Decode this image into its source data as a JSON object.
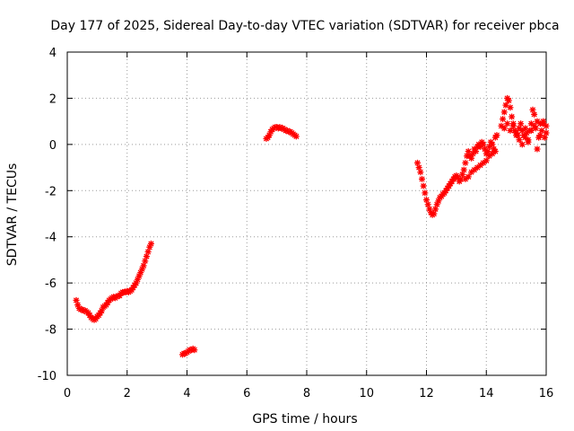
{
  "chart_data": {
    "type": "scatter",
    "title": "Day 177 of 2025, Sidereal Day-to-day VTEC variation (SDTVAR) for receiver pbca",
    "xlabel": "GPS time / hours",
    "ylabel": "SDTVAR / TECUs",
    "xlim": [
      0,
      16
    ],
    "ylim": [
      -10,
      4
    ],
    "xticks": [
      0,
      2,
      4,
      6,
      8,
      10,
      12,
      14,
      16
    ],
    "xtick_labels": [
      "0",
      "2",
      "4",
      "6",
      "8",
      "10",
      "12",
      "14",
      "16"
    ],
    "yticks": [
      -10,
      -8,
      -6,
      -4,
      -2,
      0,
      2,
      4
    ],
    "ytick_labels": [
      "-10",
      "-8",
      "-6",
      "-4",
      "-2",
      "0",
      "2",
      "4"
    ],
    "grid": true,
    "marker": "plus-cross",
    "series": [
      {
        "name": "SDTVAR pbca",
        "color": "#ff0000",
        "segments": [
          {
            "x": [
              0.3,
              0.35,
              0.4,
              0.45,
              0.5,
              0.55,
              0.6,
              0.65,
              0.7,
              0.75,
              0.8,
              0.85,
              0.9,
              0.95,
              1.0,
              1.05,
              1.1,
              1.15,
              1.2,
              1.25,
              1.3,
              1.35,
              1.4,
              1.45,
              1.5,
              1.55,
              1.6,
              1.65,
              1.7,
              1.75,
              1.8,
              1.85,
              1.9,
              1.95,
              2.0,
              2.05,
              2.1,
              2.15,
              2.2,
              2.25,
              2.3,
              2.35,
              2.4,
              2.45,
              2.5,
              2.55,
              2.6,
              2.65,
              2.7,
              2.75,
              2.8
            ],
            "y": [
              -6.75,
              -6.95,
              -7.1,
              -7.15,
              -7.15,
              -7.2,
              -7.2,
              -7.25,
              -7.3,
              -7.4,
              -7.5,
              -7.55,
              -7.6,
              -7.55,
              -7.45,
              -7.4,
              -7.3,
              -7.2,
              -7.05,
              -7.0,
              -6.95,
              -6.85,
              -6.75,
              -6.7,
              -6.65,
              -6.6,
              -6.65,
              -6.6,
              -6.55,
              -6.55,
              -6.45,
              -6.4,
              -6.4,
              -6.4,
              -6.35,
              -6.4,
              -6.35,
              -6.3,
              -6.2,
              -6.1,
              -6.0,
              -5.85,
              -5.7,
              -5.55,
              -5.4,
              -5.25,
              -5.05,
              -4.85,
              -4.65,
              -4.45,
              -4.3
            ]
          },
          {
            "x": [
              3.85,
              3.9,
              3.95,
              4.0,
              4.05,
              4.1,
              4.15,
              4.2,
              4.25
            ],
            "y": [
              -9.1,
              -9.05,
              -9.05,
              -9.0,
              -8.95,
              -8.9,
              -8.9,
              -8.85,
              -8.9
            ]
          },
          {
            "x": [
              6.65,
              6.7,
              6.75,
              6.8,
              6.85,
              6.9,
              6.95,
              7.0,
              7.05,
              7.1,
              7.15,
              7.2,
              7.25,
              7.3,
              7.35,
              7.4,
              7.45,
              7.5,
              7.55,
              7.6,
              7.65
            ],
            "y": [
              0.25,
              0.3,
              0.4,
              0.55,
              0.65,
              0.7,
              0.75,
              0.75,
              0.7,
              0.75,
              0.7,
              0.7,
              0.65,
              0.6,
              0.6,
              0.55,
              0.55,
              0.5,
              0.45,
              0.4,
              0.35
            ]
          },
          {
            "x": [
              11.7,
              11.75,
              11.8,
              11.85,
              11.9,
              11.95,
              12.0,
              12.05,
              12.1,
              12.15,
              12.2,
              12.25,
              12.3,
              12.35,
              12.4,
              12.45,
              12.5,
              12.55,
              12.6,
              12.65,
              12.7,
              12.75,
              12.8,
              12.85,
              12.9,
              12.95,
              13.0,
              13.05,
              13.1,
              13.15,
              13.2,
              13.25,
              13.3,
              13.35,
              13.4,
              13.45,
              13.5,
              13.55,
              13.6,
              13.65,
              13.7,
              13.75,
              13.8,
              13.85,
              13.9,
              13.95,
              14.0,
              14.05,
              14.1,
              14.15,
              14.2,
              14.25,
              14.3,
              14.35
            ],
            "y": [
              -0.8,
              -1.0,
              -1.2,
              -1.5,
              -1.8,
              -2.1,
              -2.4,
              -2.6,
              -2.8,
              -2.95,
              -3.05,
              -3.0,
              -2.8,
              -2.6,
              -2.45,
              -2.3,
              -2.25,
              -2.15,
              -2.1,
              -2.0,
              -1.9,
              -1.8,
              -1.7,
              -1.6,
              -1.5,
              -1.4,
              -1.35,
              -1.45,
              -1.6,
              -1.5,
              -1.3,
              -1.1,
              -0.8,
              -0.5,
              -0.3,
              -0.5,
              -0.6,
              -0.4,
              -0.2,
              -0.3,
              -0.1,
              0.0,
              -0.1,
              0.1,
              0.0,
              -0.2,
              -0.4,
              -0.3,
              -0.1,
              0.1,
              0.0,
              -0.2,
              0.3,
              0.4
            ]
          },
          {
            "x": [
              13.3,
              13.4,
              13.5,
              13.6,
              13.7,
              13.8,
              13.9,
              14.0,
              14.1,
              14.2,
              14.3
            ],
            "y": [
              -1.5,
              -1.4,
              -1.2,
              -1.1,
              -1.0,
              -0.9,
              -0.8,
              -0.7,
              -0.5,
              -0.4,
              -0.3
            ]
          },
          {
            "x": [
              14.5,
              14.55,
              14.6,
              14.65,
              14.7,
              14.75,
              14.8,
              14.85,
              14.9,
              14.95,
              15.0,
              15.05,
              15.1,
              15.15,
              15.2,
              15.25,
              15.3,
              15.35,
              15.4,
              15.45,
              15.5,
              15.55,
              15.6,
              15.65,
              15.7,
              15.75,
              15.8,
              15.85,
              15.9,
              15.95,
              16.0
            ],
            "y": [
              0.8,
              1.1,
              1.4,
              1.7,
              2.0,
              1.9,
              1.6,
              1.2,
              0.9,
              0.6,
              0.5,
              0.4,
              0.7,
              0.9,
              0.6,
              0.4,
              0.7,
              0.5,
              0.2,
              0.6,
              0.9,
              1.5,
              1.3,
              0.7,
              -0.2,
              0.3,
              0.9,
              0.6,
              1.0,
              0.3,
              0.8
            ]
          },
          {
            "x": [
              14.6,
              14.7,
              14.8,
              14.9,
              15.0,
              15.1,
              15.2,
              15.3,
              15.4,
              15.5,
              15.6,
              15.7,
              15.8,
              15.9,
              16.0
            ],
            "y": [
              0.7,
              0.9,
              0.6,
              0.8,
              0.4,
              0.2,
              0.0,
              0.3,
              0.1,
              0.6,
              0.8,
              1.0,
              0.4,
              0.9,
              0.5
            ]
          }
        ]
      }
    ]
  }
}
